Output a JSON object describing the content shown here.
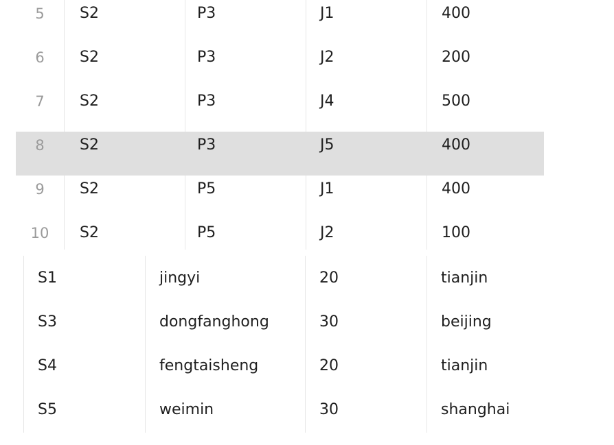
{
  "spj_table": {
    "rows": [
      {
        "index": "5",
        "sno": "S2",
        "pno": "P3",
        "jno": "J1",
        "qty": "400",
        "selected": false
      },
      {
        "index": "6",
        "sno": "S2",
        "pno": "P3",
        "jno": "J2",
        "qty": "200",
        "selected": false
      },
      {
        "index": "7",
        "sno": "S2",
        "pno": "P3",
        "jno": "J4",
        "qty": "500",
        "selected": false
      },
      {
        "index": "8",
        "sno": "S2",
        "pno": "P3",
        "jno": "J5",
        "qty": "400",
        "selected": true
      },
      {
        "index": "9",
        "sno": "S2",
        "pno": "P5",
        "jno": "J1",
        "qty": "400",
        "selected": false
      },
      {
        "index": "10",
        "sno": "S2",
        "pno": "P5",
        "jno": "J2",
        "qty": "100",
        "selected": false
      }
    ]
  },
  "supplier_table": {
    "rows": [
      {
        "sno": "S1",
        "sname": "jingyi",
        "status": "20",
        "city": "tianjin"
      },
      {
        "sno": "S3",
        "sname": "dongfanghong",
        "status": "30",
        "city": "beijing"
      },
      {
        "sno": "S4",
        "sname": "fengtaisheng",
        "status": "20",
        "city": "tianjin"
      },
      {
        "sno": "S5",
        "sname": "weimin",
        "status": "30",
        "city": "shanghai"
      }
    ]
  },
  "colors": {
    "selected_row_bg": "#dfdfdf",
    "row_number_text": "#9a9a9a",
    "cell_text": "#1f1f1f",
    "grid_line": "#e6e6e6"
  }
}
